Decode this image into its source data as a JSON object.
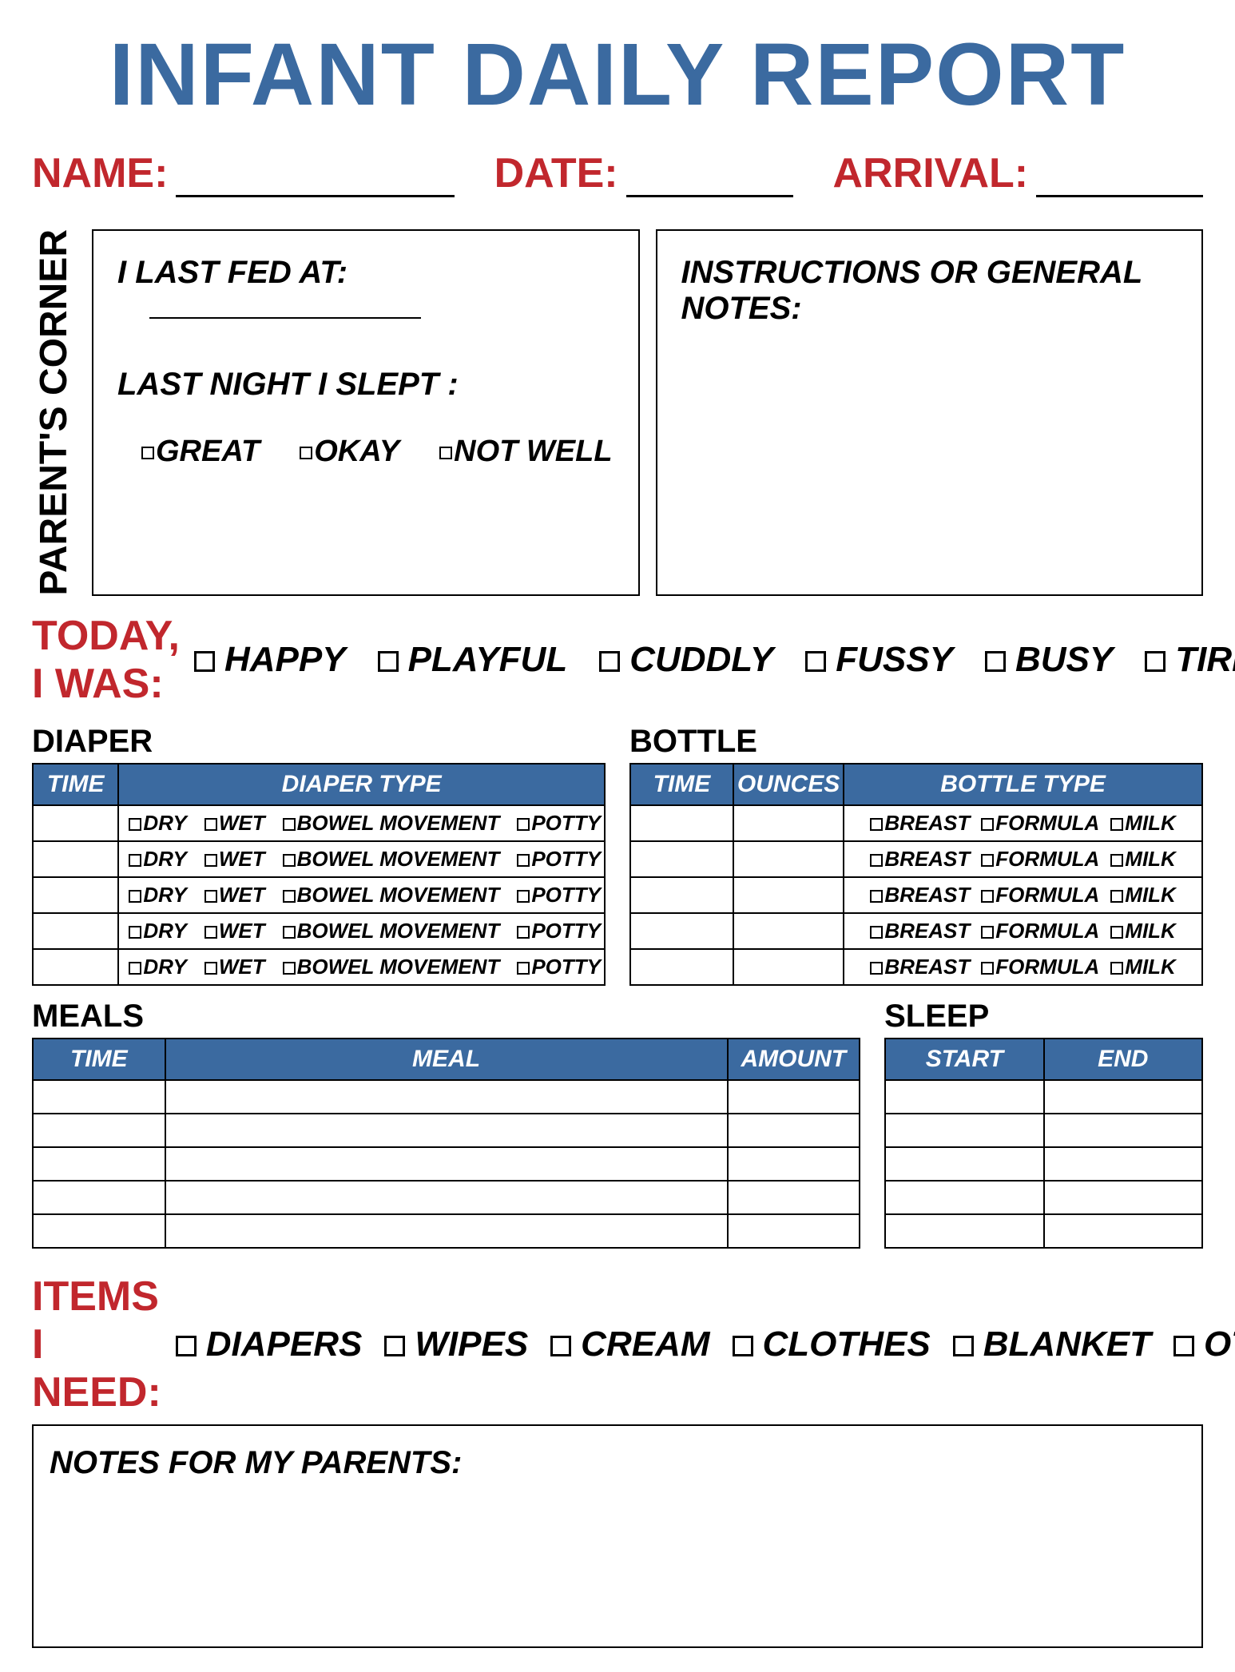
{
  "colors": {
    "blue": "#3b6aa0",
    "red": "#c1272d",
    "black": "#000000",
    "white": "#ffffff"
  },
  "title": "INFANT DAILY REPORT",
  "header": {
    "name_label": "NAME:",
    "date_label": "DATE:",
    "arrival_label": "ARRIVAL:"
  },
  "parents_corner": {
    "side_label": "PARENT'S CORNER",
    "last_fed_label": "I LAST FED AT:",
    "last_night_label": "LAST NIGHT I SLEPT :",
    "sleep_options": [
      "GREAT",
      "OKAY",
      "NOT WELL"
    ],
    "notes_label": "INSTRUCTIONS OR GENERAL NOTES:"
  },
  "today": {
    "label": "TODAY, I WAS:",
    "moods": [
      "HAPPY",
      "PLAYFUL",
      "CUDDLY",
      "FUSSY",
      "BUSY",
      "TIRED"
    ]
  },
  "diaper": {
    "section": "DIAPER",
    "cols": [
      "TIME",
      "DIAPER TYPE"
    ],
    "type_options": [
      "DRY",
      "WET",
      "BOWEL MOVEMENT",
      "POTTY"
    ],
    "rows": 5,
    "col_time_width_pct": 18
  },
  "bottle": {
    "section": "BOTTLE",
    "cols": [
      "TIME",
      "OUNCES",
      "BOTTLE TYPE"
    ],
    "type_options": [
      "BREAST",
      "FORMULA",
      "MILK"
    ],
    "rows": 5,
    "col_time_width_pct": 18,
    "col_oz_width_pct": 18
  },
  "meals": {
    "section": "MEALS",
    "cols": [
      "TIME",
      "MEAL",
      "AMOUNT"
    ],
    "rows": 5,
    "col_time_width_pct": 16,
    "col_amount_width_pct": 16
  },
  "sleep": {
    "section": "SLEEP",
    "cols": [
      "START",
      "END"
    ],
    "rows": 5
  },
  "items": {
    "label": "ITEMS I NEED:",
    "options": [
      "DIAPERS",
      "WIPES",
      "CREAM",
      "CLOTHES",
      "BLANKET",
      "OTHER"
    ]
  },
  "notes_for_parents_label": "NOTES FOR MY PARENTS:",
  "layout": {
    "meals_flex": 2.6,
    "sleep_flex": 1
  }
}
